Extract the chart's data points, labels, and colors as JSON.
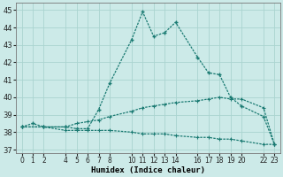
{
  "xlabel": "Humidex (Indice chaleur)",
  "bg_color": "#cceae8",
  "grid_color": "#aad4d0",
  "line_color": "#1a7a72",
  "ylim": [
    36.8,
    45.4
  ],
  "yticks": [
    37,
    38,
    39,
    40,
    41,
    42,
    43,
    44,
    45
  ],
  "xlim": [
    -0.5,
    23.5
  ],
  "xtick_positions": [
    0,
    1,
    2,
    4,
    5,
    6,
    7,
    8,
    10,
    11,
    12,
    13,
    14,
    16,
    17,
    18,
    19,
    20,
    22,
    23
  ],
  "xtick_labels": [
    "0",
    "1",
    "2",
    "4",
    "5",
    "6",
    "7",
    "8",
    "10",
    "11",
    "12",
    "13",
    "14",
    "16",
    "17",
    "18",
    "19",
    "20",
    "22",
    "23"
  ],
  "series1_x": [
    0,
    1,
    2,
    4,
    5,
    6,
    7,
    8,
    10,
    11,
    12,
    13,
    14,
    16,
    17,
    18,
    19,
    20,
    22,
    23
  ],
  "series1_y": [
    38.3,
    38.5,
    38.3,
    38.3,
    38.2,
    38.2,
    39.3,
    40.8,
    43.3,
    44.9,
    43.5,
    43.7,
    44.3,
    42.3,
    41.4,
    41.3,
    40.0,
    39.5,
    38.9,
    37.3
  ],
  "series2_x": [
    0,
    2,
    4,
    5,
    6,
    7,
    8,
    10,
    11,
    12,
    13,
    14,
    16,
    17,
    18,
    19,
    20,
    22,
    23
  ],
  "series2_y": [
    38.3,
    38.3,
    38.3,
    38.5,
    38.6,
    38.7,
    38.9,
    39.2,
    39.4,
    39.5,
    39.6,
    39.7,
    39.8,
    39.9,
    40.0,
    39.9,
    39.9,
    39.4,
    37.3
  ],
  "series3_x": [
    0,
    2,
    4,
    5,
    6,
    7,
    8,
    10,
    11,
    12,
    13,
    14,
    16,
    17,
    18,
    19,
    20,
    22,
    23
  ],
  "series3_y": [
    38.3,
    38.3,
    38.1,
    38.1,
    38.1,
    38.1,
    38.1,
    38.0,
    37.9,
    37.9,
    37.9,
    37.8,
    37.7,
    37.7,
    37.6,
    37.6,
    37.5,
    37.3,
    37.3
  ]
}
